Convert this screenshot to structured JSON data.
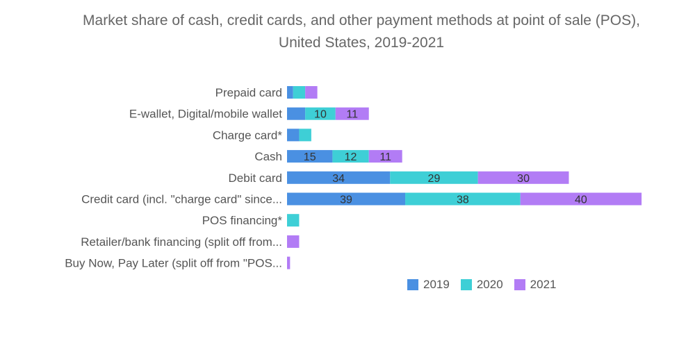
{
  "chart_data": {
    "type": "bar",
    "orientation": "horizontal",
    "stacked": true,
    "title": "Market share of cash, credit cards, and other payment methods at point of sale (POS), United States, 2019-2021",
    "title_lines": [
      "Market share of cash, credit cards, and other payment methods at point of sale (POS),",
      "United States, 2019-2021"
    ],
    "categories": [
      "Prepaid card",
      "E-wallet, Digital/mobile wallet",
      "Charge card*",
      "Cash",
      "Debit card",
      "Credit card (incl. \"charge card\" since...",
      "POS financing*",
      "Retailer/bank financing (split off from...",
      "Buy Now, Pay Later (split off from \"POS..."
    ],
    "series": [
      {
        "name": "2019",
        "color": "#4a90e2",
        "values": [
          2,
          6,
          4,
          15,
          34,
          39,
          0,
          0,
          0
        ]
      },
      {
        "name": "2020",
        "color": "#3ecfd6",
        "values": [
          4,
          10,
          4,
          12,
          29,
          38,
          4,
          0,
          0
        ]
      },
      {
        "name": "2021",
        "color": "#b27cf5",
        "values": [
          4,
          11,
          0,
          11,
          30,
          40,
          0,
          4,
          1
        ]
      }
    ],
    "label_threshold": 8,
    "xlim": [
      0,
      117
    ],
    "grid": false,
    "legend_position": "bottom-center"
  }
}
